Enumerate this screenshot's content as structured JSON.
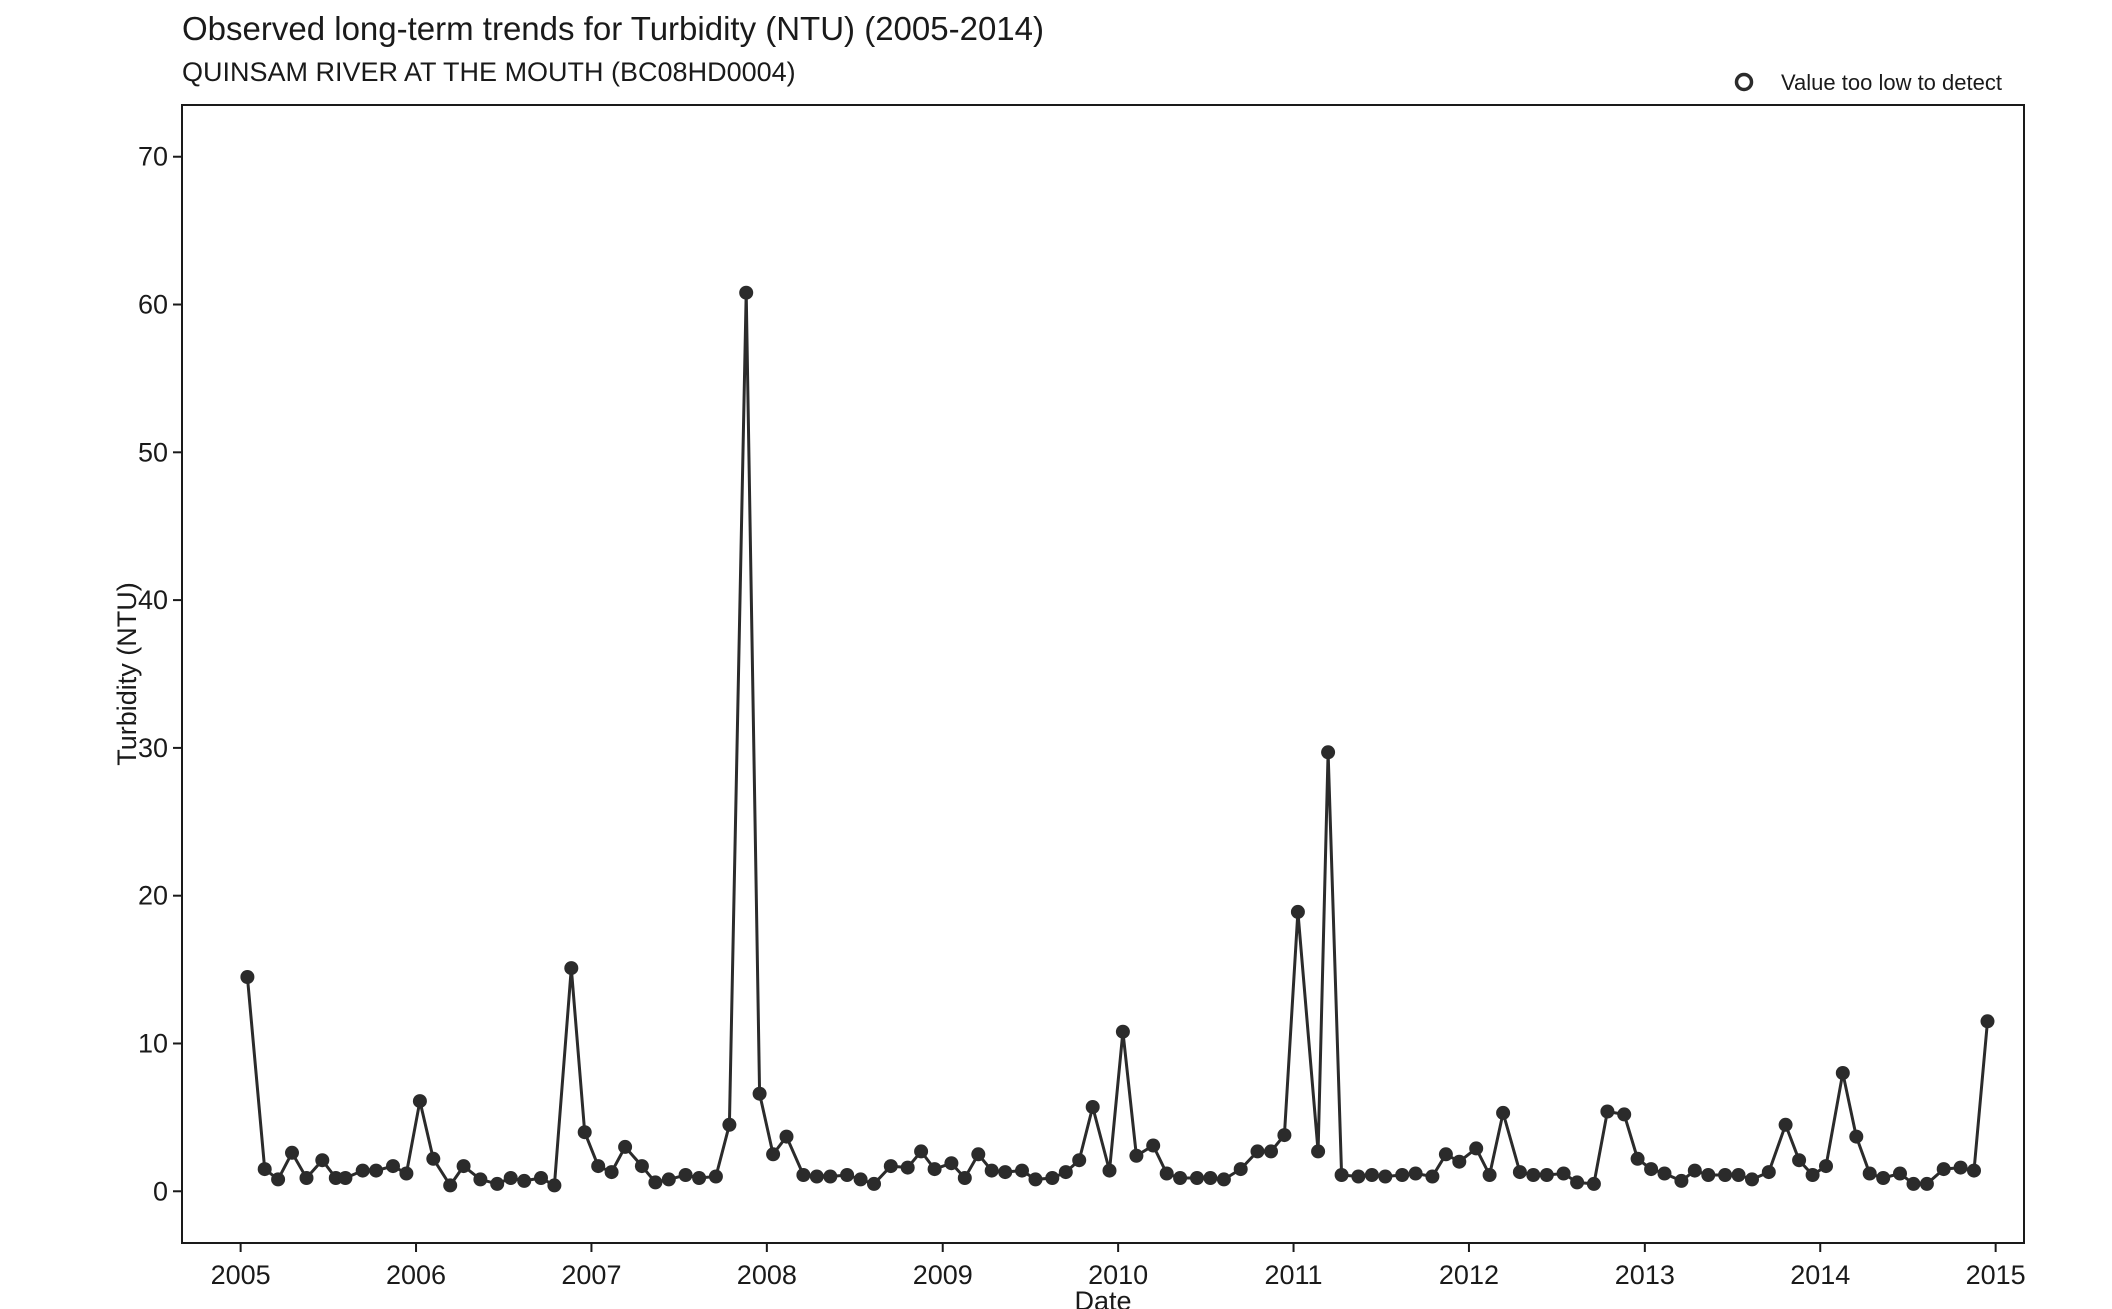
{
  "chart_data": {
    "type": "line",
    "title": "Observed long-term trends for Turbidity (NTU) (2005-2014)",
    "subtitle": "QUINSAM RIVER AT THE MOUTH (BC08HD0004)",
    "xlabel": "Date",
    "ylabel": "Turbidity (NTU)",
    "xlim": [
      "2004-09-01",
      "2015-03-01"
    ],
    "ylim": [
      -3.5,
      73.5
    ],
    "x_ticks": [
      "2005",
      "2006",
      "2007",
      "2008",
      "2009",
      "2010",
      "2011",
      "2012",
      "2013",
      "2014",
      "2015"
    ],
    "y_ticks": [
      0,
      10,
      20,
      30,
      40,
      50,
      60,
      70
    ],
    "y_tick_labels": [
      "0",
      "10",
      "20",
      "30",
      "40",
      "50",
      "60",
      "70"
    ],
    "grid": false,
    "legend": {
      "position": "top-right",
      "entries": [
        {
          "label": "Value too low to detect",
          "marker": "open-circle"
        }
      ]
    },
    "colors": {
      "line": "#2b2b2b",
      "point": "#2b2b2b",
      "frame": "#1a1a1a"
    },
    "series": [
      {
        "x": [
          "2005-01-15",
          "2005-02-20",
          "2005-03-20",
          "2005-04-18",
          "2005-05-18",
          "2005-06-20",
          "2005-07-18",
          "2005-08-07",
          "2005-09-12",
          "2005-10-10",
          "2005-11-14",
          "2005-12-12",
          "2006-01-09",
          "2006-02-06",
          "2006-03-13",
          "2006-04-10",
          "2006-05-15",
          "2006-06-19",
          "2006-07-17",
          "2006-08-14",
          "2006-09-18",
          "2006-10-16",
          "2006-11-20",
          "2006-12-18",
          "2007-01-15",
          "2007-02-12",
          "2007-03-12",
          "2007-04-16",
          "2007-05-14",
          "2007-06-11",
          "2007-07-16",
          "2007-08-13",
          "2007-09-17",
          "2007-10-15",
          "2007-11-19",
          "2007-12-17",
          "2008-01-14",
          "2008-02-11",
          "2008-03-17",
          "2008-04-14",
          "2008-05-12",
          "2008-06-16",
          "2008-07-14",
          "2008-08-11",
          "2008-09-15",
          "2008-10-20",
          "2008-11-17",
          "2008-12-15",
          "2009-01-19",
          "2009-02-16",
          "2009-03-16",
          "2009-04-13",
          "2009-05-11",
          "2009-06-15",
          "2009-07-13",
          "2009-08-17",
          "2009-09-14",
          "2009-10-12",
          "2009-11-09",
          "2009-12-14",
          "2010-01-11",
          "2010-02-08",
          "2010-03-15",
          "2010-04-12",
          "2010-05-10",
          "2010-06-14",
          "2010-07-12",
          "2010-08-09",
          "2010-09-13",
          "2010-10-18",
          "2010-11-15",
          "2010-12-13",
          "2011-01-10",
          "2011-02-21",
          "2011-03-14",
          "2011-04-11",
          "2011-05-16",
          "2011-06-13",
          "2011-07-11",
          "2011-08-15",
          "2011-09-12",
          "2011-10-17",
          "2011-11-14",
          "2011-12-12",
          "2012-01-16",
          "2012-02-13",
          "2012-03-12",
          "2012-04-16",
          "2012-05-14",
          "2012-06-11",
          "2012-07-16",
          "2012-08-13",
          "2012-09-17",
          "2012-10-15",
          "2012-11-19",
          "2012-12-17",
          "2013-01-14",
          "2013-02-11",
          "2013-03-18",
          "2013-04-15",
          "2013-05-13",
          "2013-06-17",
          "2013-07-15",
          "2013-08-12",
          "2013-09-16",
          "2013-10-21",
          "2013-11-18",
          "2013-12-16",
          "2014-01-13",
          "2014-02-17",
          "2014-03-17",
          "2014-04-14",
          "2014-05-12",
          "2014-06-16",
          "2014-07-14",
          "2014-08-11",
          "2014-09-15",
          "2014-10-20",
          "2014-11-17",
          "2014-12-15"
        ],
        "values": [
          14.5,
          1.5,
          0.8,
          2.6,
          0.9,
          2.1,
          0.9,
          0.9,
          1.4,
          1.4,
          1.7,
          1.2,
          6.1,
          2.2,
          0.4,
          1.7,
          0.8,
          0.5,
          0.9,
          0.7,
          0.9,
          0.4,
          15.1,
          4.0,
          1.7,
          1.3,
          3.0,
          1.7,
          0.6,
          0.8,
          1.1,
          0.9,
          1.0,
          4.5,
          60.8,
          6.6,
          2.5,
          3.7,
          1.1,
          1.0,
          1.0,
          1.1,
          0.8,
          0.5,
          1.7,
          1.6,
          2.7,
          1.5,
          1.9,
          0.9,
          2.5,
          1.4,
          1.3,
          1.4,
          0.8,
          0.9,
          1.3,
          2.1,
          5.7,
          1.4,
          10.8,
          2.4,
          3.1,
          1.2,
          0.9,
          0.9,
          0.9,
          0.8,
          1.5,
          2.7,
          2.7,
          3.8,
          18.9,
          2.7,
          29.7,
          1.1,
          1.0,
          1.1,
          1.0,
          1.1,
          1.2,
          1.0,
          2.5,
          2.0,
          2.9,
          1.1,
          5.3,
          1.3,
          1.1,
          1.1,
          1.2,
          0.6,
          0.5,
          5.4,
          5.2,
          2.2,
          1.5,
          1.2,
          0.7,
          1.4,
          1.1,
          1.1,
          1.1,
          0.8,
          1.3,
          4.5,
          2.1,
          1.1,
          1.7,
          8.0,
          3.7,
          1.2,
          0.9,
          1.2,
          0.5,
          0.5,
          1.5,
          1.6,
          1.4,
          11.5
        ]
      }
    ]
  }
}
